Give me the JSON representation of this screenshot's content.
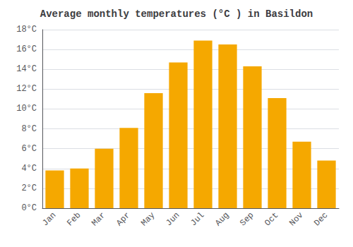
{
  "chart_data": {
    "type": "bar",
    "title": "Average monthly temperatures (°C ) in Basildon",
    "categories": [
      "Jan",
      "Feb",
      "Mar",
      "Apr",
      "May",
      "Jun",
      "Jul",
      "Aug",
      "Sep",
      "Oct",
      "Nov",
      "Dec"
    ],
    "values": [
      3.8,
      4.0,
      6.0,
      8.1,
      11.6,
      14.7,
      16.9,
      16.5,
      14.3,
      11.1,
      6.7,
      4.8
    ],
    "color": "#F5A800",
    "ylim": [
      0,
      18
    ],
    "yticks": [
      {
        "value": 0,
        "label": "0°C"
      },
      {
        "value": 2,
        "label": "2°C"
      },
      {
        "value": 4,
        "label": "4°C"
      },
      {
        "value": 6,
        "label": "6°C"
      },
      {
        "value": 8,
        "label": "8°C"
      },
      {
        "value": 10,
        "label": "10°C"
      },
      {
        "value": 12,
        "label": "12°C"
      },
      {
        "value": 14,
        "label": "14°C"
      },
      {
        "value": 16,
        "label": "16°C"
      },
      {
        "value": 18,
        "label": "18°C"
      }
    ],
    "grid": true
  }
}
